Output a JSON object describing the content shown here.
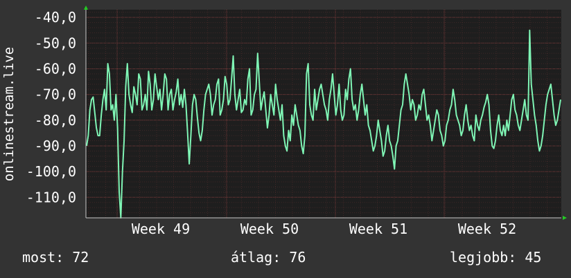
{
  "chart_data": {
    "type": "line",
    "ylabel": "onlinestream.live",
    "ylim": [
      -118,
      -37
    ],
    "y_ticks": [
      -40,
      -50,
      -60,
      -70,
      -80,
      -90,
      -100,
      -110
    ],
    "y_tick_labels": [
      "-40,0",
      "-50,0",
      "-60,0",
      "-70,0",
      "-80,0",
      "-90,0",
      "-100,0",
      "-110,0"
    ],
    "x_tick_labels": [
      "Week 49",
      "Week 50",
      "Week 51",
      "Week 52"
    ],
    "grid": true,
    "colors": {
      "background": "#333333",
      "plot": "#1e1e1e",
      "grid": "#5a3030",
      "line": "#7ff5b5",
      "axis": "#c8c8c8",
      "arrow": "#22cc22"
    },
    "series": [
      {
        "values": [
          -90,
          -86,
          -76,
          -72,
          -71,
          -77,
          -83,
          -86,
          -86,
          -78,
          -72,
          -68,
          -76,
          -58,
          -62,
          -76,
          -74,
          -80,
          -70,
          -83,
          -108,
          -118,
          -100,
          -88,
          -67,
          -58,
          -70,
          -74,
          -77,
          -67,
          -70,
          -74,
          -62,
          -64,
          -76,
          -74,
          -70,
          -76,
          -61,
          -66,
          -76,
          -72,
          -62,
          -67,
          -72,
          -68,
          -76,
          -70,
          -62,
          -64,
          -76,
          -70,
          -68,
          -76,
          -72,
          -69,
          -64,
          -74,
          -70,
          -75,
          -68,
          -74,
          -85,
          -97,
          -86,
          -74,
          -70,
          -72,
          -79,
          -85,
          -88,
          -84,
          -76,
          -70,
          -68,
          -66,
          -70,
          -78,
          -74,
          -72,
          -66,
          -64,
          -78,
          -76,
          -72,
          -63,
          -66,
          -74,
          -72,
          -64,
          -55,
          -70,
          -76,
          -72,
          -68,
          -77,
          -76,
          -72,
          -74,
          -64,
          -60,
          -78,
          -76,
          -70,
          -68,
          -54,
          -65,
          -76,
          -72,
          -69,
          -76,
          -83,
          -78,
          -70,
          -74,
          -78,
          -66,
          -72,
          -76,
          -80,
          -74,
          -86,
          -90,
          -92,
          -84,
          -88,
          -78,
          -82,
          -74,
          -78,
          -82,
          -84,
          -90,
          -93,
          -86,
          -62,
          -58,
          -74,
          -78,
          -80,
          -68,
          -76,
          -72,
          -68,
          -66,
          -70,
          -74,
          -76,
          -80,
          -72,
          -68,
          -62,
          -70,
          -78,
          -74,
          -66,
          -76,
          -80,
          -78,
          -68,
          -72,
          -64,
          -60,
          -72,
          -76,
          -74,
          -80,
          -76,
          -70,
          -66,
          -72,
          -78,
          -74,
          -82,
          -84,
          -88,
          -92,
          -90,
          -86,
          -80,
          -84,
          -88,
          -94,
          -92,
          -86,
          -82,
          -88,
          -90,
          -94,
          -99,
          -90,
          -88,
          -82,
          -76,
          -74,
          -66,
          -62,
          -66,
          -70,
          -76,
          -72,
          -74,
          -80,
          -78,
          -74,
          -76,
          -70,
          -68,
          -74,
          -80,
          -78,
          -82,
          -88,
          -84,
          -80,
          -76,
          -78,
          -84,
          -86,
          -90,
          -88,
          -82,
          -80,
          -76,
          -74,
          -68,
          -72,
          -78,
          -80,
          -82,
          -86,
          -84,
          -78,
          -74,
          -80,
          -84,
          -82,
          -86,
          -88,
          -78,
          -82,
          -84,
          -80,
          -78,
          -75,
          -73,
          -70,
          -74,
          -84,
          -90,
          -91,
          -88,
          -82,
          -78,
          -84,
          -86,
          -82,
          -86,
          -80,
          -84,
          -78,
          -72,
          -70,
          -76,
          -78,
          -82,
          -84,
          -80,
          -76,
          -72,
          -78,
          -80,
          -45,
          -66,
          -72,
          -78,
          -82,
          -88,
          -92,
          -90,
          -86,
          -80,
          -74,
          -70,
          -68,
          -66,
          -72,
          -78,
          -82,
          -80,
          -76,
          -72
        ]
      }
    ]
  },
  "legend": {
    "current": "most: 72",
    "average": "átlag: 76",
    "best": "legjobb: 45"
  }
}
